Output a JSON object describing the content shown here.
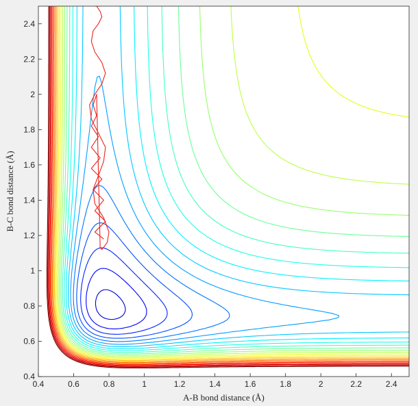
{
  "chart_data": {
    "type": "contour",
    "title": "",
    "xlabel": "A-B bond distance (Å)",
    "ylabel": "B-C bond distance (Å)",
    "xlim": [
      0.4,
      2.5
    ],
    "ylim": [
      0.4,
      2.5
    ],
    "xticks": [
      0.4,
      0.6,
      0.8,
      1,
      1.2,
      1.4,
      1.6,
      1.8,
      2,
      2.2,
      2.4
    ],
    "xtick_labels": [
      "0.4",
      "0.6",
      "0.8",
      "1",
      "1.2",
      "1.4",
      "1.6",
      "1.8",
      "2",
      "2.2",
      "2.4"
    ],
    "yticks": [
      0.4,
      0.6,
      0.8,
      1,
      1.2,
      1.4,
      1.6,
      1.8,
      2,
      2.2,
      2.4
    ],
    "ytick_labels": [
      "0.4",
      "0.6",
      "0.8",
      "1",
      "1.2",
      "1.4",
      "1.6",
      "1.8",
      "2",
      "2.2",
      "2.4"
    ],
    "grid": false,
    "colormap": "jet",
    "background": "#ffffff",
    "contour_levels": 26,
    "surface": {
      "model": "morse_pair_sum",
      "De": 1.0,
      "a": 3.2,
      "re": 0.74,
      "coupling": 0.4
    },
    "trajectory": {
      "color": "#e8231f",
      "x": [
        0.77,
        0.72,
        0.78,
        0.72,
        0.77,
        0.71,
        0.76,
        0.7,
        0.75,
        0.7,
        0.74,
        0.7,
        0.73,
        0.71,
        0.73,
        0.75,
        0.76,
        0.79,
        0.8,
        0.77,
        0.72,
        0.71,
        0.74,
        0.77,
        0.78,
        0.74,
        0.7,
        0.69,
        0.72,
        0.76,
        0.78,
        0.76,
        0.72,
        0.7,
        0.71,
        0.74,
        0.76,
        0.75,
        0.73,
        0.72,
        0.73,
        0.74,
        0.75,
        0.74,
        0.73
      ],
      "y": [
        1.18,
        1.22,
        1.28,
        1.34,
        1.4,
        1.46,
        1.52,
        1.58,
        1.64,
        1.7,
        1.76,
        1.82,
        1.88,
        1.94,
        2.0,
        1.13,
        1.12,
        1.16,
        1.22,
        1.3,
        1.38,
        1.46,
        1.54,
        1.62,
        1.7,
        1.78,
        1.86,
        1.94,
        2.0,
        2.06,
        2.12,
        2.18,
        2.24,
        2.3,
        2.36,
        2.4,
        2.44,
        2.47,
        2.5,
        2.5,
        2.5,
        2.5,
        2.5,
        2.5,
        2.5
      ]
    }
  }
}
